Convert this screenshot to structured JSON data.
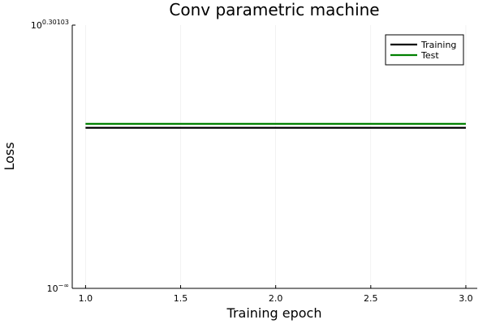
{
  "chart_data": {
    "type": "line",
    "title": "Conv parametric machine",
    "xlabel": "Training epoch",
    "ylabel": "Loss",
    "xlim": [
      0.93,
      3.06
    ],
    "x_ticks": [
      1.0,
      1.5,
      2.0,
      2.5,
      3.0
    ],
    "x_tick_labels": [
      "1.0",
      "1.5",
      "2.0",
      "2.5",
      "3.0"
    ],
    "y_scale": "log10",
    "y_ticks": [
      {
        "base": "10",
        "exponent": "0.30103"
      },
      {
        "base": "10",
        "exponent": "−∞"
      }
    ],
    "ylim": [
      0,
      2.0
    ],
    "grid": true,
    "legend_position": "top-right",
    "series": [
      {
        "name": "Training",
        "color": "#000000",
        "x": [
          1,
          2,
          3
        ],
        "values": [
          1.22,
          1.22,
          1.22
        ]
      },
      {
        "name": "Test",
        "color": "#008000",
        "x": [
          1,
          2,
          3
        ],
        "values": [
          1.25,
          1.25,
          1.25
        ]
      }
    ]
  }
}
